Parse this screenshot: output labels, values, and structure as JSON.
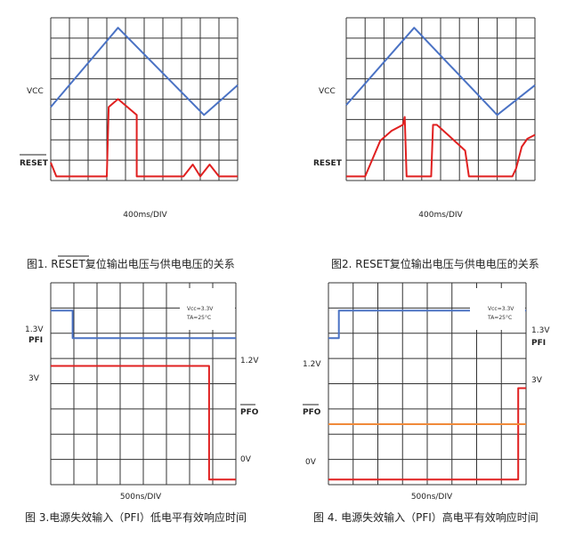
{
  "chart_data": [
    {
      "type": "line",
      "caption": "图1. RESET复位输出电压与供电电压的关系",
      "caption_overline": "RESET",
      "xlabel": "400ms/DIV",
      "signals": [
        {
          "label": "VCC",
          "color": "#4a72c4",
          "points": [
            [
              0,
              3.5
            ],
            [
              3.6,
              7.5
            ],
            [
              8.2,
              3.1
            ],
            [
              10,
              4.6
            ]
          ]
        },
        {
          "label": "RESET",
          "overline": true,
          "color": "#e02020",
          "points": [
            [
              0,
              0.7
            ],
            [
              0.3,
              0
            ],
            [
              3.0,
              0
            ],
            [
              3.1,
              3.5
            ],
            [
              3.6,
              3.9
            ],
            [
              4.6,
              3.1
            ],
            [
              4.6,
              0
            ],
            [
              7.1,
              0
            ],
            [
              7.6,
              0.6
            ],
            [
              8.0,
              0
            ],
            [
              8.5,
              0.6
            ],
            [
              9.0,
              0
            ],
            [
              10,
              0
            ]
          ]
        }
      ]
    },
    {
      "type": "line",
      "caption": "图2. RESET复位输出电压与供电电压的关系",
      "xlabel": "400ms/DIV",
      "signals": [
        {
          "label": "VCC",
          "color": "#4a72c4",
          "points": [
            [
              0,
              3.6
            ],
            [
              3.6,
              7.5
            ],
            [
              8.0,
              3.1
            ],
            [
              10,
              4.6
            ]
          ]
        },
        {
          "label": "RESET",
          "color": "#e02020",
          "points": [
            [
              0,
              0
            ],
            [
              1.0,
              0
            ],
            [
              1.4,
              0.9
            ],
            [
              1.8,
              1.8
            ],
            [
              2.4,
              2.3
            ],
            [
              3.0,
              2.6
            ],
            [
              3.1,
              3.0
            ],
            [
              3.2,
              0
            ],
            [
              4.5,
              0
            ],
            [
              4.6,
              2.6
            ],
            [
              4.8,
              2.6
            ],
            [
              5.5,
              2.0
            ],
            [
              6.3,
              1.3
            ],
            [
              6.5,
              0
            ],
            [
              8.8,
              0
            ],
            [
              9.0,
              0.4
            ],
            [
              9.3,
              1.5
            ],
            [
              9.6,
              1.9
            ],
            [
              10,
              2.1
            ]
          ]
        }
      ]
    },
    {
      "type": "line",
      "caption": "图 3.电源失效输入（PFI）低电平有效响应时间",
      "xlabel": "500ns/DIV",
      "legend_line1": "Vcc=3.3V",
      "legend_line2": "TA=25°C",
      "signals": [
        {
          "label": "PFI",
          "left_value": "1.3V",
          "right_value": "1.2V",
          "color": "#4a72c4",
          "points": [
            [
              0,
              6.1
            ],
            [
              0.9,
              6.1
            ],
            [
              0.9,
              5.1
            ],
            [
              7.6,
              5.1
            ]
          ]
        },
        {
          "label": "PFO",
          "overline": true,
          "left_value": "3V",
          "right_value": "0V",
          "color": "#e02020",
          "points": [
            [
              0,
              4.1
            ],
            [
              6.5,
              4.1
            ],
            [
              6.5,
              0
            ],
            [
              7.6,
              0
            ]
          ]
        }
      ]
    },
    {
      "type": "line",
      "caption": "图 4. 电源失效输入（PFI）高电平有效响应时间",
      "xlabel": "500ns/DIV",
      "legend_line1": "Vcc=3.3V",
      "legend_line2": "TA=25°C",
      "signals": [
        {
          "label": "PFI",
          "left_value": "1.2V",
          "right_value": "1.3V",
          "color": "#4a72c4",
          "points": [
            [
              0,
              5.1
            ],
            [
              0.4,
              5.1
            ],
            [
              0.4,
              6.1
            ],
            [
              7.6,
              6.1
            ]
          ]
        },
        {
          "label": "PFO",
          "overline": true,
          "left_value": "0V",
          "right_value": "3V",
          "color": "#e02020",
          "points": [
            [
              0,
              0
            ],
            [
              7.3,
              0
            ],
            [
              7.3,
              3.3
            ],
            [
              7.6,
              3.3
            ]
          ]
        },
        {
          "label": "",
          "color": "#f08a3a",
          "points": [
            [
              0,
              2.0
            ],
            [
              7.6,
              2.0
            ]
          ]
        }
      ]
    }
  ]
}
